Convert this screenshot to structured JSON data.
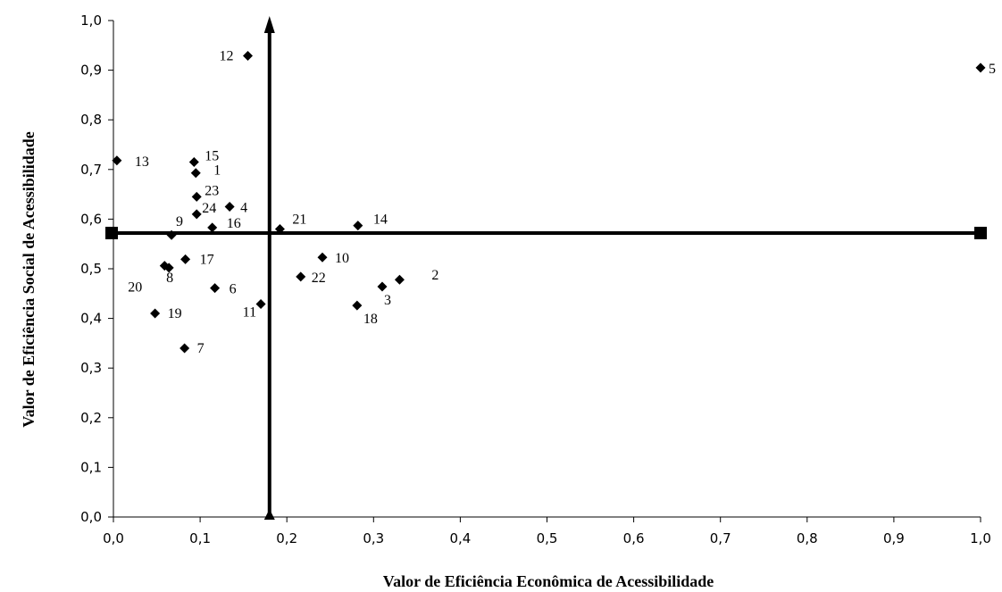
{
  "chart_data": {
    "type": "scatter",
    "title": "",
    "xlabel": "Valor de Eficiência Econômica de Acessibilidade",
    "ylabel": "Valor de Eficiência Social de Acessibilidade",
    "xlim": [
      0.0,
      1.0
    ],
    "ylim": [
      0.0,
      1.0
    ],
    "x_ticks": [
      "0,0",
      "0,1",
      "0,2",
      "0,3",
      "0,4",
      "0,5",
      "0,6",
      "0,7",
      "0,8",
      "0,9",
      "1,0"
    ],
    "y_ticks": [
      "0,0",
      "0,1",
      "0,2",
      "0,3",
      "0,4",
      "0,5",
      "0,6",
      "0,7",
      "0,8",
      "0,9",
      "1,0"
    ],
    "grid": false,
    "legend": "none",
    "marker": "diamond",
    "marker_color": "#000000",
    "points": [
      {
        "label": "1",
        "x": 0.095,
        "y": 0.693
      },
      {
        "label": "2",
        "x": 0.33,
        "y": 0.478
      },
      {
        "label": "3",
        "x": 0.31,
        "y": 0.464
      },
      {
        "label": "4",
        "x": 0.134,
        "y": 0.625
      },
      {
        "label": "5",
        "x": 1.0,
        "y": 0.905
      },
      {
        "label": "6",
        "x": 0.117,
        "y": 0.461
      },
      {
        "label": "7",
        "x": 0.082,
        "y": 0.34
      },
      {
        "label": "8",
        "x": 0.064,
        "y": 0.502
      },
      {
        "label": "9",
        "x": 0.067,
        "y": 0.568
      },
      {
        "label": "10",
        "x": 0.241,
        "y": 0.523
      },
      {
        "label": "11",
        "x": 0.17,
        "y": 0.429
      },
      {
        "label": "12",
        "x": 0.155,
        "y": 0.929
      },
      {
        "label": "13",
        "x": 0.004,
        "y": 0.718
      },
      {
        "label": "14",
        "x": 0.282,
        "y": 0.587
      },
      {
        "label": "15",
        "x": 0.093,
        "y": 0.715
      },
      {
        "label": "16",
        "x": 0.114,
        "y": 0.583
      },
      {
        "label": "17",
        "x": 0.083,
        "y": 0.519
      },
      {
        "label": "18",
        "x": 0.281,
        "y": 0.426
      },
      {
        "label": "19",
        "x": 0.048,
        "y": 0.41
      },
      {
        "label": "20",
        "x": 0.059,
        "y": 0.506
      },
      {
        "label": "21",
        "x": 0.192,
        "y": 0.58
      },
      {
        "label": "22",
        "x": 0.216,
        "y": 0.484
      },
      {
        "label": "23",
        "x": 0.096,
        "y": 0.645
      },
      {
        "label": "24",
        "x": 0.096,
        "y": 0.61
      }
    ],
    "reference_lines": {
      "vertical_x": 0.18,
      "horizontal_y": 0.572
    }
  }
}
